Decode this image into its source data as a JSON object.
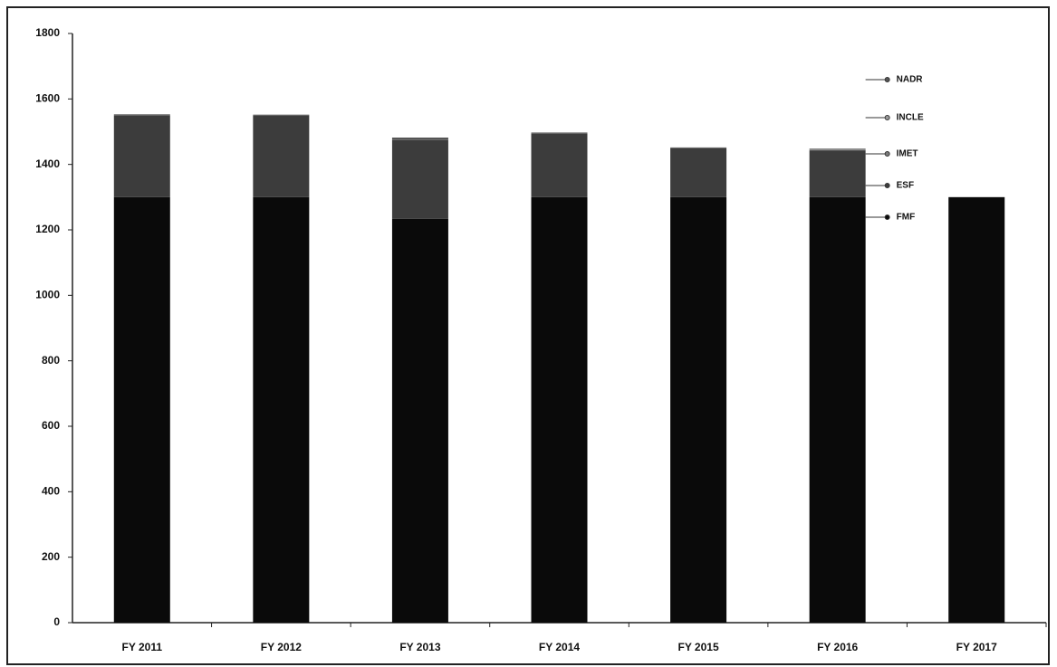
{
  "chart_data": {
    "type": "stacked-bar",
    "categories": [
      "FY 2011",
      "FY 2012",
      "FY 2013",
      "FY 2014",
      "FY 2015",
      "FY 2016",
      "FY 2017"
    ],
    "series": [
      {
        "name": "FMF",
        "color": "#0a0a0a",
        "values": [
          1300,
          1300,
          1234,
          1300,
          1300,
          1300,
          1300
        ]
      },
      {
        "name": "ESF",
        "color": "#3c3c3c",
        "values": [
          250,
          250,
          241,
          195,
          150,
          143,
          0
        ]
      },
      {
        "name": "IMET",
        "color": "#7a7a7a",
        "values": [
          1,
          1,
          1,
          1,
          2,
          2,
          0
        ]
      },
      {
        "name": "INCLE",
        "color": "#9a9a9a",
        "values": [
          0,
          0,
          0,
          1,
          0,
          1,
          0
        ]
      },
      {
        "name": "NADR",
        "color": "#555555",
        "values": [
          2,
          1,
          6,
          1,
          0,
          2,
          0
        ]
      }
    ],
    "ylim": [
      0,
      1800
    ],
    "yticks": [
      0,
      200,
      400,
      600,
      800,
      1000,
      1200,
      1400,
      1600,
      1800
    ],
    "grid": false
  }
}
